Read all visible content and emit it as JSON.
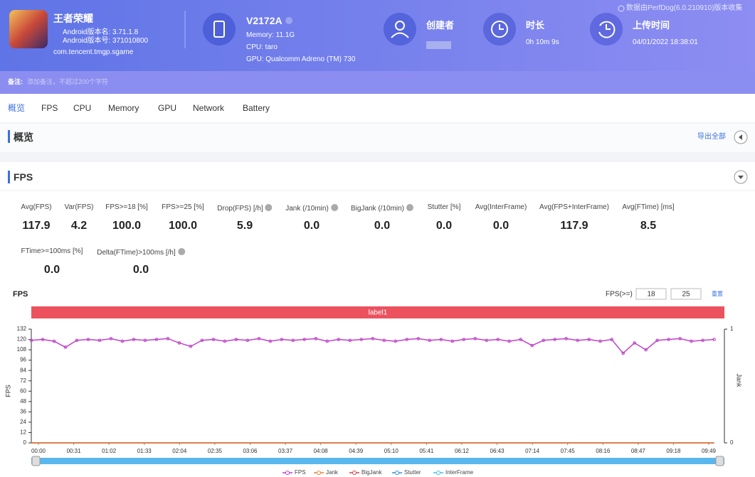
{
  "header": {
    "app_name": "王者荣耀",
    "android_version_name": "Android版本名: 3.71.1.8",
    "android_version_code": "Android版本号: 371010800",
    "package": "com.tencent.tmgp.sgame",
    "device": "V2172A",
    "memory": "Memory: 11.1G",
    "cpu": "CPU: taro",
    "gpu": "GPU: Qualcomm Adreno (TM) 730",
    "creator_label": "创建者",
    "duration_label": "时长",
    "duration": "0h 10m 9s",
    "upload_label": "上传时间",
    "upload_time": "04/01/2022 18:38:01",
    "source": "数据由PerfDog(6.0.210910)版本收集"
  },
  "note": {
    "label": "备注:",
    "placeholder": "添加备注，不超过200个字符"
  },
  "tabs": [
    "概览",
    "FPS",
    "CPU",
    "Memory",
    "GPU",
    "Network",
    "Battery"
  ],
  "overview": {
    "title": "概览",
    "export": "导出全部"
  },
  "fps_section": {
    "title": "FPS",
    "stats": [
      {
        "label": "Avg(FPS)",
        "value": "117.9"
      },
      {
        "label": "Var(FPS)",
        "value": "4.2"
      },
      {
        "label": "FPS>=18 [%]",
        "value": "100.0"
      },
      {
        "label": "FPS>=25 [%]",
        "value": "100.0"
      },
      {
        "label": "Drop(FPS) [/h]",
        "value": "5.9"
      },
      {
        "label": "Jank (/10min)",
        "value": "0.0"
      },
      {
        "label": "BigJank (/10min)",
        "value": "0.0"
      },
      {
        "label": "Stutter [%]",
        "value": "0.0"
      },
      {
        "label": "Avg(InterFrame)",
        "value": "0.0"
      },
      {
        "label": "Avg(FPS+InterFrame)",
        "value": "117.9"
      },
      {
        "label": "Avg(FTime) [ms]",
        "value": "8.5"
      },
      {
        "label": "FTime>=100ms [%]",
        "value": "0.0"
      },
      {
        "label": "Delta(FTime)>100ms [/h]",
        "value": "0.0"
      }
    ]
  },
  "chart_data": {
    "type": "line",
    "title": "FPS",
    "threshold_label": "FPS(>=)",
    "thresholds": [
      18,
      25
    ],
    "reset": "重置",
    "band_label": "label1",
    "y_label": "FPS",
    "y2_label": "Jank",
    "xlim": [
      0,
      609
    ],
    "ylim": [
      0,
      132
    ],
    "y2lim": [
      0,
      1
    ],
    "yticks": [
      0,
      12,
      24,
      36,
      48,
      60,
      72,
      84,
      96,
      108,
      120,
      132
    ],
    "y2ticks": [
      0,
      1
    ],
    "xticks": [
      {
        "value": 0,
        "label": "00:00"
      },
      {
        "value": 31,
        "label": "00:31"
      },
      {
        "value": 62,
        "label": "01:02"
      },
      {
        "value": 93,
        "label": "01:33"
      },
      {
        "value": 124,
        "label": "02:04"
      },
      {
        "value": 155,
        "label": "02:35"
      },
      {
        "value": 186,
        "label": "03:06"
      },
      {
        "value": 217,
        "label": "03:37"
      },
      {
        "value": 248,
        "label": "04:08"
      },
      {
        "value": 279,
        "label": "04:39"
      },
      {
        "value": 310,
        "label": "05:10"
      },
      {
        "value": 341,
        "label": "05:41"
      },
      {
        "value": 372,
        "label": "06:12"
      },
      {
        "value": 403,
        "label": "06:43"
      },
      {
        "value": 434,
        "label": "07:14"
      },
      {
        "value": 465,
        "label": "07:45"
      },
      {
        "value": 496,
        "label": "08:16"
      },
      {
        "value": 527,
        "label": "08:47"
      },
      {
        "value": 558,
        "label": "09:18"
      },
      {
        "value": 589,
        "label": "09:49"
      }
    ],
    "x": [
      0,
      10,
      20,
      30,
      40,
      50,
      60,
      70,
      80,
      90,
      100,
      110,
      120,
      130,
      140,
      150,
      160,
      170,
      180,
      190,
      200,
      210,
      220,
      230,
      240,
      250,
      260,
      270,
      280,
      290,
      300,
      310,
      320,
      330,
      340,
      350,
      360,
      370,
      380,
      390,
      400,
      410,
      420,
      430,
      440,
      450,
      460,
      470,
      480,
      490,
      500,
      510,
      520,
      530,
      540,
      550,
      560,
      570,
      580,
      590,
      600
    ],
    "series": [
      {
        "name": "FPS",
        "color": "#c040c8",
        "values": [
          119,
          120,
          118,
          111,
          119,
          120,
          119,
          121,
          118,
          120,
          119,
          120,
          121,
          116,
          112,
          119,
          120,
          118,
          120,
          119,
          121,
          118,
          120,
          119,
          120,
          121,
          118,
          120,
          119,
          120,
          121,
          119,
          118,
          120,
          121,
          119,
          120,
          118,
          120,
          121,
          119,
          120,
          118,
          120,
          113,
          119,
          120,
          121,
          119,
          120,
          118,
          120,
          104,
          116,
          108,
          119,
          120,
          121,
          118,
          119,
          120
        ]
      },
      {
        "name": "Jank",
        "color": "#f08030",
        "axis": "y2",
        "values": [
          0,
          0,
          0,
          0,
          0,
          0,
          0,
          0,
          0,
          0,
          0,
          0,
          0,
          0,
          0,
          0,
          0,
          0,
          0,
          0,
          0,
          0,
          0,
          0,
          0,
          0,
          0,
          0,
          0,
          0,
          0,
          0,
          0,
          0,
          0,
          0,
          0,
          0,
          0,
          0,
          0,
          0,
          0,
          0,
          0,
          0,
          0,
          0,
          0,
          0,
          0,
          0,
          0,
          0,
          0,
          0,
          0,
          0,
          0,
          0,
          0
        ]
      },
      {
        "name": "BigJank",
        "color": "#e04048",
        "axis": "y2",
        "values": [
          0,
          0,
          0,
          0,
          0,
          0,
          0,
          0,
          0,
          0,
          0,
          0,
          0,
          0,
          0,
          0,
          0,
          0,
          0,
          0,
          0,
          0,
          0,
          0,
          0,
          0,
          0,
          0,
          0,
          0,
          0,
          0,
          0,
          0,
          0,
          0,
          0,
          0,
          0,
          0,
          0,
          0,
          0,
          0,
          0,
          0,
          0,
          0,
          0,
          0,
          0,
          0,
          0,
          0,
          0,
          0,
          0,
          0,
          0,
          0,
          0
        ]
      },
      {
        "name": "Stutter",
        "color": "#3090e0",
        "values": [
          0,
          0,
          0,
          0,
          0,
          0,
          0,
          0,
          0,
          0,
          0,
          0,
          0,
          0,
          0,
          0,
          0,
          0,
          0,
          0,
          0,
          0,
          0,
          0,
          0,
          0,
          0,
          0,
          0,
          0,
          0,
          0,
          0,
          0,
          0,
          0,
          0,
          0,
          0,
          0,
          0,
          0,
          0,
          0,
          0,
          0,
          0,
          0,
          0,
          0,
          0,
          0,
          0,
          0,
          0,
          0,
          0,
          0,
          0,
          0,
          0
        ]
      },
      {
        "name": "InterFrame",
        "color": "#40c0f0",
        "values": [
          0,
          0,
          0,
          0,
          0,
          0,
          0,
          0,
          0,
          0,
          0,
          0,
          0,
          0,
          0,
          0,
          0,
          0,
          0,
          0,
          0,
          0,
          0,
          0,
          0,
          0,
          0,
          0,
          0,
          0,
          0,
          0,
          0,
          0,
          0,
          0,
          0,
          0,
          0,
          0,
          0,
          0,
          0,
          0,
          0,
          0,
          0,
          0,
          0,
          0,
          0,
          0,
          0,
          0,
          0,
          0,
          0,
          0,
          0,
          0,
          0
        ]
      }
    ]
  }
}
